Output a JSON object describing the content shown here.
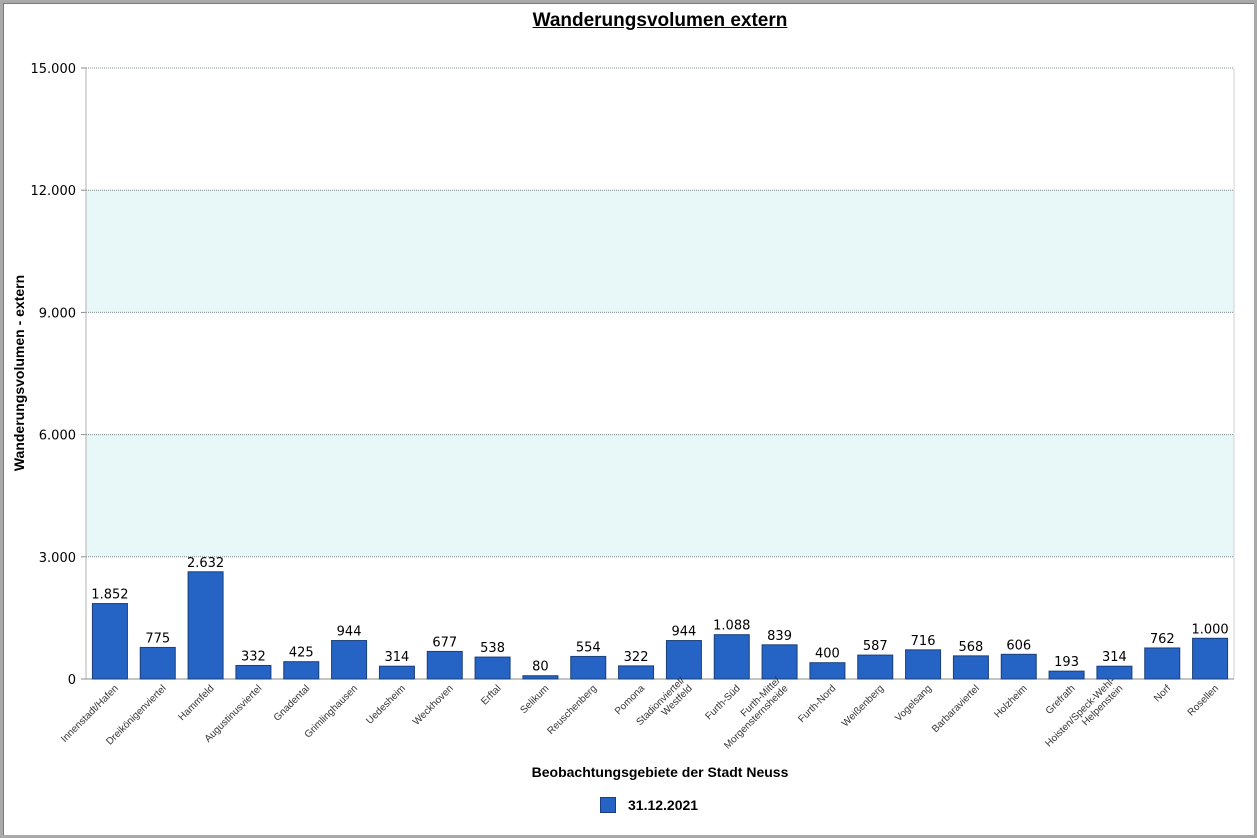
{
  "chart_data": {
    "type": "bar",
    "title": "Wanderungsvolumen extern",
    "xlabel": "Beobachtungsgebiete der Stadt Neuss",
    "ylabel": "Wanderungsvolumen - extern",
    "ylim": [
      0,
      15000
    ],
    "yticks": [
      0,
      3000,
      6000,
      9000,
      12000,
      15000
    ],
    "ytick_labels": [
      "0",
      "3.000",
      "6.000",
      "9.000",
      "12.000",
      "15.000"
    ],
    "grid": true,
    "bands": [
      [
        3000,
        6000
      ],
      [
        9000,
        12000
      ]
    ],
    "legend_position": "bottom",
    "series": [
      {
        "name": "31.12.2021",
        "color": "#2563c4",
        "values": [
          1852,
          775,
          2632,
          332,
          425,
          944,
          314,
          677,
          538,
          80,
          554,
          322,
          944,
          1088,
          839,
          400,
          587,
          716,
          568,
          606,
          193,
          314,
          762,
          1000
        ],
        "value_labels": [
          "1.852",
          "775",
          "2.632",
          "332",
          "425",
          "944",
          "314",
          "677",
          "538",
          "80",
          "554",
          "322",
          "944",
          "1.088",
          "839",
          "400",
          "587",
          "716",
          "568",
          "606",
          "193",
          "314",
          "762",
          "1.000"
        ]
      }
    ],
    "categories": [
      "Innenstadt/Hafen",
      "Dreikönigenviertel",
      "Hammfeld",
      "Augustinusviertel",
      "Gnadental",
      "Grimlinghausen",
      "Uedesheim",
      "Weckhoven",
      "Erftal",
      "Selikum",
      "Reuschenberg",
      "Pomona",
      "Stadionviertel/ Westfeld",
      "Furth-Süd",
      "Furth-Mitte/ Morgensternsheide",
      "Furth-Nord",
      "Weißenberg",
      "Vogelsang",
      "Barbaraviertel",
      "Holzheim",
      "Grefrath",
      "Hoisten/Speck-Wehl- Helpenstein",
      "Norf",
      "Rosellen"
    ]
  }
}
